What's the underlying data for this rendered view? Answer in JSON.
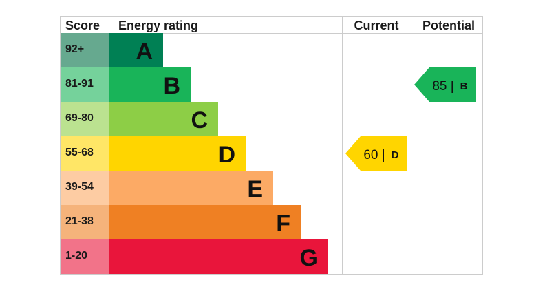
{
  "headers": {
    "score": "Score",
    "rating": "Energy rating",
    "current": "Current",
    "potential": "Potential"
  },
  "chart_data": {
    "type": "bar",
    "title": "",
    "bands": [
      {
        "letter": "A",
        "score": "92+",
        "color": "#008054",
        "score_bg": "#66a98f"
      },
      {
        "letter": "B",
        "score": "81-91",
        "color": "#19b459",
        "score_bg": "#75d29b"
      },
      {
        "letter": "C",
        "score": "69-80",
        "color": "#8dce46",
        "score_bg": "#bbe290"
      },
      {
        "letter": "D",
        "score": "55-68",
        "color": "#ffd500",
        "score_bg": "#ffe666"
      },
      {
        "letter": "E",
        "score": "39-54",
        "color": "#fcaa65",
        "score_bg": "#fdcca3"
      },
      {
        "letter": "F",
        "score": "21-38",
        "color": "#ef8023",
        "score_bg": "#f5b37b"
      },
      {
        "letter": "G",
        "score": "1-20",
        "color": "#e9153b",
        "score_bg": "#f27389"
      }
    ],
    "current": {
      "value": 60,
      "text": "60 |",
      "letter": "D",
      "color": "#ffd500"
    },
    "potential": {
      "value": 85,
      "text": "85 |",
      "letter": "B",
      "color": "#19b459"
    }
  }
}
